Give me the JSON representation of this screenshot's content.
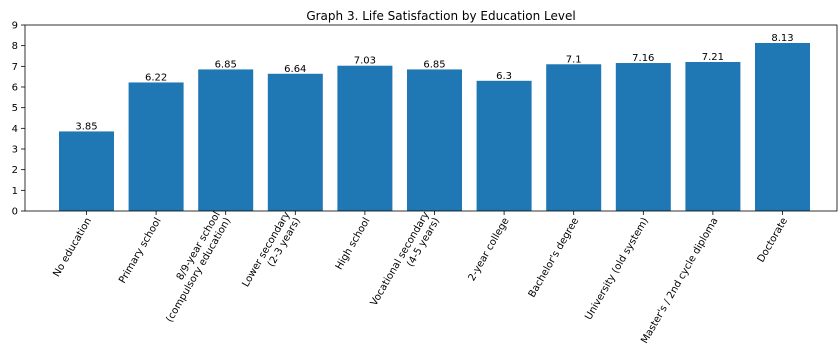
{
  "chart_data": {
    "type": "bar",
    "title": "Graph 3. Life Satisfaction by Education Level",
    "xlabel": "",
    "ylabel": "",
    "ylim": [
      0,
      9
    ],
    "yticks": [
      0,
      1,
      2,
      3,
      4,
      5,
      6,
      7,
      8,
      9
    ],
    "grid": false,
    "bar_color": "#1f77b4",
    "categories": [
      [
        "No education"
      ],
      [
        "Primary school"
      ],
      [
        "8/9-year school",
        "(compulsory education)"
      ],
      [
        "Lower secondary",
        "(2-3 years)"
      ],
      [
        "High school"
      ],
      [
        "Vocational secondary",
        "(4-5 years)"
      ],
      [
        "2-year college"
      ],
      [
        "Bachelor's degree"
      ],
      [
        "University (old system)"
      ],
      [
        "Master's / 2nd cycle diploma"
      ],
      [
        "Doctorate"
      ]
    ],
    "values": [
      3.85,
      6.22,
      6.85,
      6.64,
      7.03,
      6.85,
      6.3,
      7.1,
      7.16,
      7.21,
      8.13
    ]
  }
}
